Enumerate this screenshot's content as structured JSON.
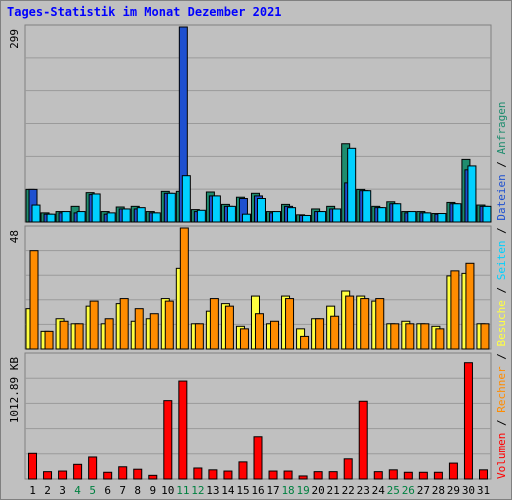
{
  "title": "Tages-Statistik im Monat Dezember 2021",
  "colors": {
    "background": "#c0c0c0",
    "grid": "#808080",
    "anfragen": "#1e8c6e",
    "dateien": "#1e50d0",
    "seiten": "#00d0ff",
    "besuche": "#ffff40",
    "rechner": "#ff8c00",
    "volumen": "#ff0000",
    "weekend_label": "#008040",
    "weekday_label": "#000000"
  },
  "chart_data": {
    "type": "bar",
    "categories": [
      "1",
      "2",
      "3",
      "4",
      "5",
      "6",
      "7",
      "8",
      "9",
      "10",
      "11",
      "12",
      "13",
      "14",
      "15",
      "16",
      "17",
      "18",
      "19",
      "20",
      "21",
      "22",
      "23",
      "24",
      "25",
      "26",
      "27",
      "28",
      "29",
      "30",
      "31"
    ],
    "weekend_days": [
      "4",
      "5",
      "11",
      "12",
      "18",
      "19",
      "25",
      "26"
    ],
    "legend": [
      "Volumen",
      "Rechner",
      "Besuche",
      "Seiten",
      "Dateien",
      "Anfragen"
    ],
    "legend_separator": "/",
    "legend_placement": "right",
    "panels": [
      {
        "ymax_label": "299",
        "ymax": 299,
        "series": [
          {
            "name": "Anfragen",
            "values": [
              50,
              14,
              16,
              24,
              45,
              16,
              23,
              24,
              16,
              47,
              47,
              19,
              46,
              27,
              38,
              44,
              16,
              27,
              11,
              20,
              24,
              120,
              50,
              24,
              31,
              16,
              16,
              13,
              30,
              96,
              26
            ]
          },
          {
            "name": "Dateien",
            "values": [
              50,
              12,
              14,
              14,
              42,
              12,
              20,
              20,
              14,
              44,
              299,
              16,
              40,
              24,
              36,
              40,
              14,
              24,
              10,
              16,
              20,
              60,
              48,
              22,
              28,
              14,
              14,
              12,
              28,
              80,
              24
            ]
          },
          {
            "name": "Seiten",
            "values": [
              26,
              12,
              16,
              16,
              43,
              14,
              20,
              22,
              14,
              44,
              71,
              18,
              40,
              24,
              12,
              36,
              16,
              22,
              10,
              16,
              20,
              113,
              48,
              22,
              28,
              16,
              14,
              13,
              28,
              86,
              24
            ]
          }
        ]
      },
      {
        "ymax_label": "48",
        "ymax": 48,
        "series": [
          {
            "name": "Besuche",
            "values": [
              16,
              7,
              12,
              10,
              17,
              10,
              18,
              11,
              12,
              20,
              32,
              10,
              15,
              18,
              9,
              21,
              10,
              21,
              8,
              12,
              17,
              23,
              21,
              19,
              10,
              11,
              10,
              9,
              29,
              30,
              10
            ]
          },
          {
            "name": "Rechner",
            "values": [
              39,
              7,
              11,
              10,
              19,
              12,
              20,
              16,
              14,
              19,
              48,
              10,
              20,
              17,
              8,
              14,
              11,
              20,
              5,
              12,
              13,
              21,
              20,
              20,
              10,
              10,
              10,
              8,
              31,
              34,
              10
            ]
          }
        ]
      },
      {
        "ymax_label": "1012.89 KB",
        "ymax": 1012.89,
        "series": [
          {
            "name": "Volumen",
            "values": [
              210,
              60,
              65,
              120,
              180,
              55,
              100,
              80,
              30,
              640,
              800,
              90,
              75,
              65,
              140,
              345,
              65,
              65,
              25,
              60,
              60,
              165,
              635,
              60,
              75,
              55,
              55,
              55,
              130,
              950,
              75
            ]
          }
        ]
      }
    ]
  }
}
